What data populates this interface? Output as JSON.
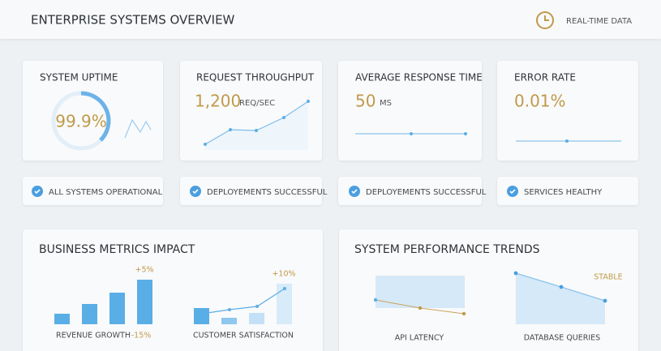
{
  "header": {
    "title": "ENTERPRISE SYSTEMS OVERVIEW",
    "status": "REAL-TIME DATA"
  },
  "cards": [
    {
      "title": "SYSTEM UPTIME",
      "value": "99.9%"
    },
    {
      "title": "REQUEST THROUGHPUT",
      "value": "1,200",
      "unit": "REQ/SEC"
    },
    {
      "title": "AVERAGE RESPONSE TIME",
      "value": "50",
      "unit": "MS"
    },
    {
      "title": "ERROR RATE",
      "value": "0.01%"
    }
  ],
  "badges": [
    "ALL SYSTEMS OPERATIONAL",
    "DEPLOYEMENTS SUCCESSFUL",
    "DEPLOYEMENTS SUCCESSFUL",
    "SERVICES HEALTHY"
  ],
  "business": {
    "title": "BUSINESS METRICS IMPACT",
    "revenue_label": "REVENUE GROWTH",
    "revenue_up": "+5%",
    "revenue_down": "-15%",
    "satisfaction_label": "CUSTOMER SATISFACTION",
    "satisfaction_up": "+10%"
  },
  "performance": {
    "title": "SYSTEM PERFORMANCE TRENDS",
    "latency_label": "API LATENCY",
    "queries_label": "DATABASE QUERIES",
    "queries_note": "STABLE"
  }
}
